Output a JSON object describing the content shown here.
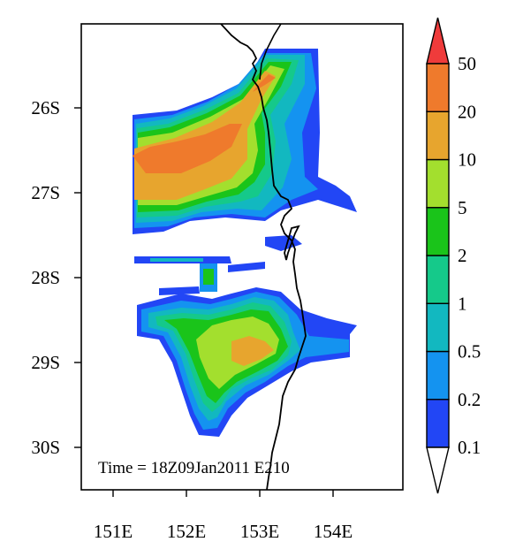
{
  "map": {
    "annotation": "Time = 18Z09Jan2011 E210",
    "lat_ticks": [
      "26S",
      "27S",
      "28S",
      "29S",
      "30S"
    ],
    "lon_ticks": [
      "151E",
      "152E",
      "153E",
      "154E"
    ],
    "lat_range": [
      -30.5,
      -25.0
    ],
    "lon_range": [
      150.55,
      154.95
    ]
  },
  "colorbar": {
    "levels": [
      "0.1",
      "0.2",
      "0.5",
      "1",
      "2",
      "5",
      "10",
      "20",
      "50"
    ],
    "colors": [
      "#2246f5",
      "#1493f0",
      "#12b8c0",
      "#15c98a",
      "#1ac41a",
      "#a3df2e",
      "#e7a52e",
      "#ef7a2c",
      "#ef3b3b"
    ],
    "under_color": "#ffffff",
    "over_color": "#ef3b3b"
  }
}
